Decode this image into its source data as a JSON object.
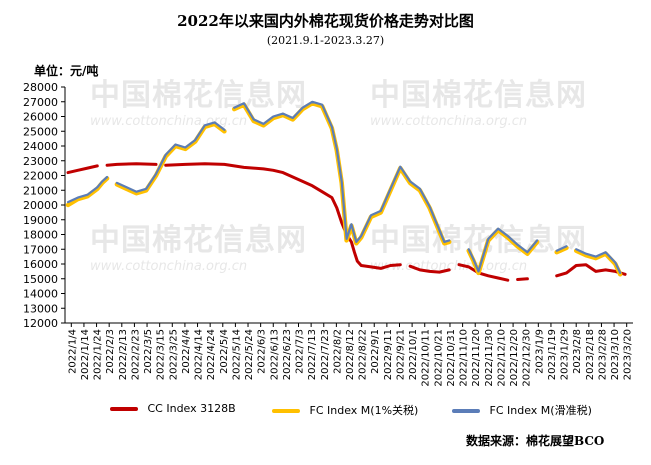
{
  "header": {
    "title": "2022年以来国内外棉花现货价格走势对比图",
    "subtitle": "(2021.9.1-2023.3.27)",
    "unit": "单位：元/吨"
  },
  "watermark": {
    "text": "中国棉花信息网",
    "url": "www.cottonchina.org.cn",
    "color": "#aaaaaa"
  },
  "source": "数据来源：棉花展望BCO",
  "chart_data": {
    "type": "line",
    "ylim": [
      12000,
      28000
    ],
    "yticks": [
      12000,
      13000,
      14000,
      15000,
      16000,
      17000,
      18000,
      19000,
      20000,
      21000,
      22000,
      23000,
      24000,
      25000,
      26000,
      27000,
      28000
    ],
    "x_tick_labels": [
      "2022/1/4",
      "2022/1/14",
      "2022/1/24",
      "2022/2/3",
      "2022/2/13",
      "2022/2/23",
      "2022/3/5",
      "2022/3/15",
      "2022/3/25",
      "2022/4/4",
      "2022/4/14",
      "2022/4/24",
      "2022/5/4",
      "2022/5/14",
      "2022/5/24",
      "2022/6/3",
      "2022/6/13",
      "2022/6/23",
      "2022/7/3",
      "2022/7/13",
      "2022/7/23",
      "2022/8/2",
      "2022/8/12",
      "2022/8/22",
      "2022/9/1",
      "2022/9/11",
      "2022/9/21",
      "2022/10/1",
      "2022/10/11",
      "2022/10/21",
      "2022/10/31",
      "2022/11/10",
      "2022/11/20",
      "2022/11/30",
      "2022/12/10",
      "2022/12/20",
      "2022/12/30",
      "2023/1/9",
      "2023/1/19",
      "2023/1/29",
      "2023/2/8",
      "2023/2/18",
      "2023/2/28",
      "2023/3/10",
      "2023/3/20"
    ],
    "grid": false,
    "legend_position": "bottom",
    "series": [
      {
        "name": "CC Index 3128B",
        "color": "#c00000",
        "points": [
          [
            0,
            22200
          ],
          [
            1,
            22350
          ],
          [
            2,
            22500
          ],
          [
            3,
            22650
          ],
          [
            4,
            22700
          ],
          [
            5,
            22750
          ],
          [
            7,
            22800
          ],
          [
            9,
            22750
          ],
          [
            10,
            22700
          ],
          [
            12,
            22750
          ],
          [
            14,
            22800
          ],
          [
            16,
            22750
          ],
          [
            17,
            22650
          ],
          [
            18,
            22550
          ],
          [
            19,
            22500
          ],
          [
            20,
            22450
          ],
          [
            21,
            22350
          ],
          [
            22,
            22200
          ],
          [
            23,
            21900
          ],
          [
            24,
            21600
          ],
          [
            25,
            21300
          ],
          [
            26,
            20900
          ],
          [
            27,
            20500
          ],
          [
            27.5,
            19800
          ],
          [
            28,
            18800
          ],
          [
            28.5,
            18000
          ],
          [
            29,
            17500
          ],
          [
            29.3,
            16800
          ],
          [
            29.6,
            16200
          ],
          [
            30,
            15900
          ],
          [
            31,
            15800
          ],
          [
            32,
            15700
          ],
          [
            33,
            15900
          ],
          [
            34,
            15950
          ],
          [
            35,
            15850
          ],
          [
            36,
            15600
          ],
          [
            37,
            15500
          ],
          [
            38,
            15450
          ],
          [
            39,
            15600
          ],
          [
            40,
            15950
          ],
          [
            41,
            15800
          ],
          [
            42,
            15400
          ],
          [
            43,
            15200
          ],
          [
            44,
            15050
          ],
          [
            45,
            14900
          ],
          [
            46,
            14950
          ],
          [
            47,
            15000
          ],
          [
            48,
            15250
          ],
          [
            49,
            15150
          ],
          [
            50,
            15200
          ],
          [
            51,
            15400
          ],
          [
            52,
            15900
          ],
          [
            53,
            15950
          ],
          [
            54,
            15500
          ],
          [
            55,
            15600
          ],
          [
            56,
            15500
          ],
          [
            57,
            15300
          ]
        ],
        "breaks_after": [
          [
            3,
            22650
          ],
          [
            9,
            22750
          ],
          [
            34,
            15950
          ],
          [
            39,
            15600
          ],
          [
            45,
            14900
          ],
          [
            47,
            15000
          ],
          [
            48,
            15250
          ],
          [
            49,
            15150
          ]
        ]
      },
      {
        "name": "FC Index M(1%关税)",
        "color": "#ffc000",
        "points": [
          [
            0,
            20000
          ],
          [
            1,
            20400
          ],
          [
            2,
            20600
          ],
          [
            3,
            21100
          ],
          [
            3.5,
            21500
          ],
          [
            4,
            21800
          ],
          [
            5,
            21400
          ],
          [
            6,
            21100
          ],
          [
            7,
            20800
          ],
          [
            8,
            21000
          ],
          [
            9,
            22000
          ],
          [
            10,
            23300
          ],
          [
            11,
            24000
          ],
          [
            12,
            23800
          ],
          [
            13,
            24300
          ],
          [
            14,
            25300
          ],
          [
            15,
            25500
          ],
          [
            16,
            25000
          ],
          [
            17,
            26500
          ],
          [
            18,
            26800
          ],
          [
            19,
            25700
          ],
          [
            20,
            25400
          ],
          [
            21,
            25900
          ],
          [
            22,
            26100
          ],
          [
            23,
            25800
          ],
          [
            24,
            26500
          ],
          [
            25,
            26900
          ],
          [
            26,
            26700
          ],
          [
            27,
            25200
          ],
          [
            27.5,
            23700
          ],
          [
            28,
            21500
          ],
          [
            28.5,
            17600
          ],
          [
            29,
            18600
          ],
          [
            29.5,
            17400
          ],
          [
            30,
            17800
          ],
          [
            31,
            19200
          ],
          [
            32,
            19500
          ],
          [
            33,
            21000
          ],
          [
            34,
            22500
          ],
          [
            35,
            21500
          ],
          [
            36,
            21000
          ],
          [
            37,
            19800
          ],
          [
            37.5,
            19000
          ],
          [
            38,
            18200
          ],
          [
            38.5,
            17400
          ],
          [
            39,
            17500
          ],
          [
            40,
            17600
          ],
          [
            41,
            16900
          ],
          [
            41.5,
            16200
          ],
          [
            42,
            15400
          ],
          [
            43,
            17600
          ],
          [
            44,
            18300
          ],
          [
            45,
            17800
          ],
          [
            46,
            17200
          ],
          [
            47,
            16700
          ],
          [
            48,
            17500
          ],
          [
            49,
            17000
          ],
          [
            50,
            16800
          ],
          [
            51,
            17100
          ],
          [
            52,
            16900
          ],
          [
            53,
            16600
          ],
          [
            54,
            16400
          ],
          [
            55,
            16700
          ],
          [
            56,
            16000
          ],
          [
            56.5,
            15300
          ]
        ],
        "breaks_after": [
          [
            4,
            21800
          ],
          [
            16,
            25000
          ],
          [
            39,
            17500
          ],
          [
            40,
            17600
          ],
          [
            48,
            17500
          ],
          [
            49,
            17000
          ],
          [
            51,
            17100
          ]
        ]
      },
      {
        "name": "FC Index M(滑准税)",
        "color": "#5b7db8",
        "points": [
          [
            0,
            20200
          ],
          [
            1,
            20500
          ],
          [
            2,
            20700
          ],
          [
            3,
            21200
          ],
          [
            3.5,
            21600
          ],
          [
            4,
            21900
          ],
          [
            5,
            21500
          ],
          [
            6,
            21200
          ],
          [
            7,
            20900
          ],
          [
            8,
            21100
          ],
          [
            9,
            22100
          ],
          [
            10,
            23400
          ],
          [
            11,
            24100
          ],
          [
            12,
            23900
          ],
          [
            13,
            24400
          ],
          [
            14,
            25400
          ],
          [
            15,
            25600
          ],
          [
            16,
            25100
          ],
          [
            17,
            26600
          ],
          [
            18,
            26900
          ],
          [
            19,
            25800
          ],
          [
            20,
            25500
          ],
          [
            21,
            26000
          ],
          [
            22,
            26200
          ],
          [
            23,
            25900
          ],
          [
            24,
            26600
          ],
          [
            25,
            27000
          ],
          [
            26,
            26800
          ],
          [
            27,
            25300
          ],
          [
            27.5,
            23800
          ],
          [
            28,
            21600
          ],
          [
            28.5,
            17700
          ],
          [
            29,
            18700
          ],
          [
            29.5,
            17500
          ],
          [
            30,
            17900
          ],
          [
            31,
            19300
          ],
          [
            32,
            19600
          ],
          [
            33,
            21100
          ],
          [
            34,
            22600
          ],
          [
            35,
            21600
          ],
          [
            36,
            21100
          ],
          [
            37,
            19900
          ],
          [
            37.5,
            19100
          ],
          [
            38,
            18300
          ],
          [
            38.5,
            17500
          ],
          [
            39,
            17600
          ],
          [
            40,
            17700
          ],
          [
            41,
            17000
          ],
          [
            41.5,
            16300
          ],
          [
            42,
            15500
          ],
          [
            43,
            17700
          ],
          [
            44,
            18400
          ],
          [
            45,
            17900
          ],
          [
            46,
            17300
          ],
          [
            47,
            16800
          ],
          [
            48,
            17600
          ],
          [
            49,
            17100
          ],
          [
            50,
            16900
          ],
          [
            51,
            17200
          ],
          [
            52,
            17000
          ],
          [
            53,
            16700
          ],
          [
            54,
            16500
          ],
          [
            55,
            16800
          ],
          [
            56,
            16100
          ],
          [
            56.5,
            15400
          ]
        ],
        "breaks_after": [
          [
            4,
            21900
          ],
          [
            16,
            25100
          ],
          [
            39,
            17600
          ],
          [
            40,
            17700
          ],
          [
            48,
            17600
          ],
          [
            49,
            17100
          ],
          [
            51,
            17200
          ]
        ]
      }
    ]
  }
}
